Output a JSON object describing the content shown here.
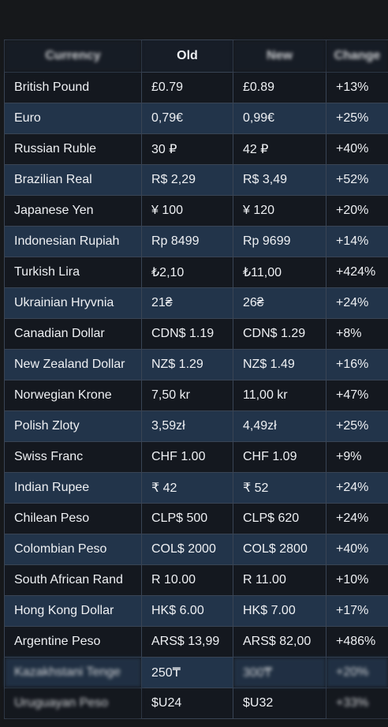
{
  "table": {
    "headers": [
      "Currency",
      "Old",
      "New",
      "Change"
    ],
    "rows": [
      [
        "British Pound",
        "£0.79",
        "£0.89",
        "+13%"
      ],
      [
        "Euro",
        "0,79€",
        "0,99€",
        "+25%"
      ],
      [
        "Russian Ruble",
        "30 ₽",
        "42 ₽",
        "+40%"
      ],
      [
        "Brazilian Real",
        "R$ 2,29",
        "R$ 3,49",
        "+52%"
      ],
      [
        "Japanese Yen",
        "¥ 100",
        "¥ 120",
        "+20%"
      ],
      [
        "Indonesian Rupiah",
        "Rp 8499",
        "Rp 9699",
        "+14%"
      ],
      [
        "Turkish Lira",
        "₺2,10",
        "₺11,00",
        "+424%"
      ],
      [
        "Ukrainian Hryvnia",
        "21₴",
        "26₴",
        "+24%"
      ],
      [
        "Canadian Dollar",
        "CDN$ 1.19",
        "CDN$ 1.29",
        "+8%"
      ],
      [
        "New Zealand Dollar",
        "NZ$ 1.29",
        "NZ$ 1.49",
        "+16%"
      ],
      [
        "Norwegian Krone",
        "7,50 kr",
        "11,00 kr",
        "+47%"
      ],
      [
        "Polish Zloty",
        "3,59zł",
        "4,49zł",
        "+25%"
      ],
      [
        "Swiss Franc",
        "CHF 1.00",
        "CHF 1.09",
        "+9%"
      ],
      [
        "Indian Rupee",
        "₹ 42",
        "₹ 52",
        "+24%"
      ],
      [
        "Chilean Peso",
        "CLP$ 500",
        "CLP$ 620",
        "+24%"
      ],
      [
        "Colombian Peso",
        "COL$ 2000",
        "COL$ 2800",
        "+40%"
      ],
      [
        "South African Rand",
        "R 10.00",
        "R 11.00",
        "+10%"
      ],
      [
        "Hong Kong Dollar",
        "HK$ 6.00",
        "HK$ 7.00",
        "+17%"
      ],
      [
        "Argentine Peso",
        "ARS$ 13,99",
        "ARS$ 82,00",
        "+486%"
      ],
      [
        "Kazakhstani Tenge",
        "250₸",
        "300₸",
        "+20%"
      ],
      [
        "Uruguayan Peso",
        "$U24",
        "$U32",
        "+33%"
      ]
    ]
  }
}
